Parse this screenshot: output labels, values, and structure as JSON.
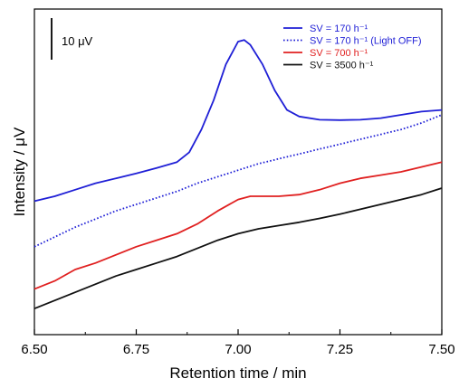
{
  "chart_data": {
    "type": "line",
    "xlabel": "Retention time / min",
    "ylabel": "Intensity / μV",
    "xlim": [
      6.5,
      7.5
    ],
    "x_ticks": [
      "6.50",
      "6.75",
      "7.00",
      "7.25",
      "7.50"
    ],
    "y_tick_labels": "none",
    "grid": false,
    "legend_position": "top-right",
    "scale_bar": {
      "label": "10 μV",
      "value_uV": 10
    },
    "series": [
      {
        "name": "SV = 170 h⁻¹",
        "color": "#1f1fd6",
        "dash": "solid",
        "points": [
          [
            6.5,
            39
          ],
          [
            6.55,
            37.5
          ],
          [
            6.6,
            35.5
          ],
          [
            6.65,
            33.5
          ],
          [
            6.7,
            32
          ],
          [
            6.75,
            30.5
          ],
          [
            6.8,
            28.8
          ],
          [
            6.85,
            27
          ],
          [
            6.88,
            24
          ],
          [
            6.91,
            17
          ],
          [
            6.94,
            8
          ],
          [
            6.97,
            -3
          ],
          [
            7.0,
            -10
          ],
          [
            7.015,
            -10.5
          ],
          [
            7.03,
            -9
          ],
          [
            7.06,
            -3
          ],
          [
            7.09,
            5
          ],
          [
            7.12,
            11
          ],
          [
            7.15,
            13
          ],
          [
            7.2,
            14
          ],
          [
            7.25,
            14.1
          ],
          [
            7.3,
            14
          ],
          [
            7.35,
            13.5
          ],
          [
            7.4,
            12.5
          ],
          [
            7.45,
            11.5
          ],
          [
            7.5,
            11
          ]
        ]
      },
      {
        "name": "SV = 170 h⁻¹ (Light OFF)",
        "color": "#1f1fd6",
        "dash": "dotted",
        "points": [
          [
            6.5,
            53
          ],
          [
            6.55,
            50
          ],
          [
            6.6,
            47
          ],
          [
            6.65,
            44.5
          ],
          [
            6.7,
            42
          ],
          [
            6.75,
            40
          ],
          [
            6.8,
            38
          ],
          [
            6.85,
            36
          ],
          [
            6.9,
            33.5
          ],
          [
            6.95,
            31.5
          ],
          [
            7.0,
            29.5
          ],
          [
            7.05,
            27.5
          ],
          [
            7.1,
            26
          ],
          [
            7.15,
            24.5
          ],
          [
            7.2,
            23
          ],
          [
            7.25,
            21.5
          ],
          [
            7.3,
            20
          ],
          [
            7.35,
            18.5
          ],
          [
            7.4,
            17
          ],
          [
            7.45,
            15
          ],
          [
            7.5,
            12.5
          ]
        ]
      },
      {
        "name": "SV = 700 h⁻¹",
        "color": "#e02020",
        "dash": "solid",
        "points": [
          [
            6.5,
            66
          ],
          [
            6.55,
            63.5
          ],
          [
            6.6,
            60
          ],
          [
            6.65,
            58
          ],
          [
            6.7,
            55.5
          ],
          [
            6.75,
            53
          ],
          [
            6.8,
            51
          ],
          [
            6.85,
            49
          ],
          [
            6.9,
            46
          ],
          [
            6.95,
            42
          ],
          [
            7.0,
            38.5
          ],
          [
            7.03,
            37.5
          ],
          [
            7.07,
            37.5
          ],
          [
            7.1,
            37.5
          ],
          [
            7.15,
            37
          ],
          [
            7.2,
            35.5
          ],
          [
            7.25,
            33.5
          ],
          [
            7.3,
            32
          ],
          [
            7.35,
            31
          ],
          [
            7.4,
            30
          ],
          [
            7.45,
            28.5
          ],
          [
            7.5,
            27
          ]
        ]
      },
      {
        "name": "SV = 3500 h⁻¹",
        "color": "#111111",
        "dash": "solid",
        "points": [
          [
            6.5,
            72
          ],
          [
            6.55,
            69.5
          ],
          [
            6.6,
            67
          ],
          [
            6.65,
            64.5
          ],
          [
            6.7,
            62
          ],
          [
            6.75,
            60
          ],
          [
            6.8,
            58
          ],
          [
            6.85,
            56
          ],
          [
            6.9,
            53.5
          ],
          [
            6.95,
            51
          ],
          [
            7.0,
            49
          ],
          [
            7.05,
            47.5
          ],
          [
            7.1,
            46.5
          ],
          [
            7.15,
            45.5
          ],
          [
            7.2,
            44.3
          ],
          [
            7.25,
            43
          ],
          [
            7.3,
            41.5
          ],
          [
            7.35,
            40
          ],
          [
            7.4,
            38.5
          ],
          [
            7.45,
            37
          ],
          [
            7.5,
            35
          ]
        ]
      }
    ]
  }
}
